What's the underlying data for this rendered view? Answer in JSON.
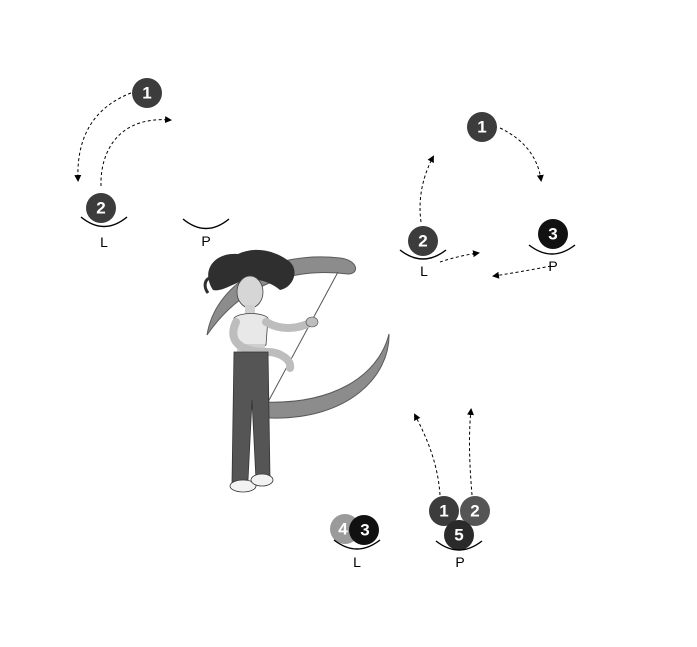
{
  "colors": {
    "ball_dark": "#3c3c3c",
    "ball_black": "#111111",
    "ball_light": "#9a9a9a",
    "prop": "#8c8c8c",
    "figure": "#555555"
  },
  "icons": [
    "juggling-ball-icon",
    "hand-cup-icon",
    "juggler-figure-icon"
  ],
  "panels": [
    {
      "hands": [
        {
          "label": "L"
        },
        {
          "label": "P"
        }
      ],
      "balls": [
        {
          "label": "1"
        },
        {
          "label": "2"
        }
      ]
    },
    {
      "hands": [
        {
          "label": "L"
        },
        {
          "label": "P"
        }
      ],
      "balls": [
        {
          "label": "1"
        },
        {
          "label": "2"
        },
        {
          "label": "3"
        }
      ]
    },
    {
      "hands": [
        {
          "label": "L"
        },
        {
          "label": "P"
        }
      ],
      "balls": [
        {
          "label": "4"
        },
        {
          "label": "3"
        },
        {
          "label": "1"
        },
        {
          "label": "2"
        },
        {
          "label": "5"
        }
      ]
    }
  ]
}
